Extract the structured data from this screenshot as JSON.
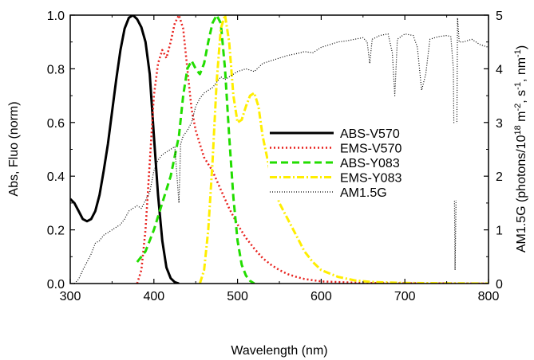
{
  "chart_data": {
    "type": "line",
    "title": "",
    "xlabel": "Wavelength (nm)",
    "ylabel": "Abs, Fluo (norm)",
    "y2label": "AM1.5G (photons/10^18 m^-2, s^-1, nm^-1)",
    "xlim": [
      300,
      800
    ],
    "ylim": [
      0,
      1.0
    ],
    "y2lim": [
      0,
      5
    ],
    "x_ticks": [
      "300",
      "400",
      "500",
      "600",
      "700",
      "800"
    ],
    "y_ticks": [
      "0.0",
      "0.2",
      "0.4",
      "0.6",
      "0.8",
      "1.0"
    ],
    "y2_ticks": [
      "0",
      "1",
      "2",
      "3",
      "4",
      "5"
    ],
    "grid": false,
    "legend_position": "center-right",
    "series": [
      {
        "name": "ABS-V570",
        "color": "#000000",
        "style": "solid",
        "axis": "left",
        "points": [
          [
            300,
            0.315
          ],
          [
            305,
            0.3
          ],
          [
            310,
            0.27
          ],
          [
            315,
            0.24
          ],
          [
            320,
            0.232
          ],
          [
            325,
            0.24
          ],
          [
            330,
            0.27
          ],
          [
            335,
            0.33
          ],
          [
            340,
            0.42
          ],
          [
            345,
            0.52
          ],
          [
            350,
            0.64
          ],
          [
            355,
            0.76
          ],
          [
            360,
            0.87
          ],
          [
            365,
            0.95
          ],
          [
            370,
            0.99
          ],
          [
            375,
            1.0
          ],
          [
            380,
            0.985
          ],
          [
            385,
            0.955
          ],
          [
            390,
            0.9
          ],
          [
            395,
            0.78
          ],
          [
            400,
            0.55
          ],
          [
            405,
            0.33
          ],
          [
            410,
            0.16
          ],
          [
            415,
            0.06
          ],
          [
            420,
            0.02
          ],
          [
            425,
            0.005
          ],
          [
            430,
            0.0
          ]
        ]
      },
      {
        "name": "EMS-V570",
        "color": "#e8201c",
        "style": "dotted",
        "axis": "left",
        "points": [
          [
            380,
            0.0
          ],
          [
            385,
            0.05
          ],
          [
            390,
            0.2
          ],
          [
            395,
            0.45
          ],
          [
            400,
            0.7
          ],
          [
            405,
            0.82
          ],
          [
            410,
            0.87
          ],
          [
            415,
            0.84
          ],
          [
            420,
            0.9
          ],
          [
            425,
            0.97
          ],
          [
            430,
            1.0
          ],
          [
            435,
            0.95
          ],
          [
            440,
            0.8
          ],
          [
            445,
            0.65
          ],
          [
            450,
            0.57
          ],
          [
            455,
            0.52
          ],
          [
            460,
            0.47
          ],
          [
            470,
            0.42
          ],
          [
            480,
            0.35
          ],
          [
            490,
            0.28
          ],
          [
            500,
            0.22
          ],
          [
            510,
            0.17
          ],
          [
            520,
            0.13
          ],
          [
            530,
            0.095
          ],
          [
            540,
            0.07
          ],
          [
            550,
            0.05
          ],
          [
            560,
            0.035
          ],
          [
            570,
            0.025
          ],
          [
            580,
            0.017
          ],
          [
            600,
            0.008
          ],
          [
            650,
            0.002
          ],
          [
            800,
            0.0
          ]
        ]
      },
      {
        "name": "ABS-Y083",
        "color": "#22dd00",
        "style": "dashed",
        "axis": "left",
        "points": [
          [
            380,
            0.08
          ],
          [
            390,
            0.12
          ],
          [
            400,
            0.2
          ],
          [
            410,
            0.3
          ],
          [
            420,
            0.4
          ],
          [
            430,
            0.55
          ],
          [
            435,
            0.7
          ],
          [
            440,
            0.8
          ],
          [
            445,
            0.83
          ],
          [
            450,
            0.8
          ],
          [
            455,
            0.78
          ],
          [
            460,
            0.82
          ],
          [
            465,
            0.9
          ],
          [
            470,
            0.97
          ],
          [
            475,
            1.0
          ],
          [
            480,
            0.97
          ],
          [
            485,
            0.8
          ],
          [
            490,
            0.55
          ],
          [
            495,
            0.32
          ],
          [
            500,
            0.16
          ],
          [
            505,
            0.07
          ],
          [
            510,
            0.03
          ],
          [
            515,
            0.01
          ],
          [
            520,
            0.0
          ]
        ]
      },
      {
        "name": "EMS-Y083",
        "color": "#ffee00",
        "style": "dashdot",
        "axis": "left",
        "points": [
          [
            455,
            0.0
          ],
          [
            460,
            0.05
          ],
          [
            465,
            0.2
          ],
          [
            470,
            0.45
          ],
          [
            475,
            0.75
          ],
          [
            480,
            0.95
          ],
          [
            485,
            1.0
          ],
          [
            490,
            0.9
          ],
          [
            495,
            0.7
          ],
          [
            500,
            0.6
          ],
          [
            505,
            0.61
          ],
          [
            510,
            0.66
          ],
          [
            515,
            0.7
          ],
          [
            520,
            0.71
          ],
          [
            525,
            0.66
          ],
          [
            530,
            0.55
          ],
          [
            540,
            0.4
          ],
          [
            550,
            0.3
          ],
          [
            560,
            0.24
          ],
          [
            570,
            0.18
          ],
          [
            580,
            0.12
          ],
          [
            590,
            0.08
          ],
          [
            600,
            0.05
          ],
          [
            620,
            0.025
          ],
          [
            640,
            0.012
          ],
          [
            660,
            0.006
          ],
          [
            700,
            0.002
          ],
          [
            800,
            0.0
          ]
        ]
      },
      {
        "name": "AM1.5G",
        "color": "#000000",
        "style": "fine-dotted",
        "axis": "right",
        "points": [
          [
            305,
            0.0
          ],
          [
            310,
            0.08
          ],
          [
            315,
            0.25
          ],
          [
            320,
            0.4
          ],
          [
            325,
            0.55
          ],
          [
            330,
            0.75
          ],
          [
            335,
            0.8
          ],
          [
            340,
            0.9
          ],
          [
            345,
            0.95
          ],
          [
            350,
            1.0
          ],
          [
            355,
            1.05
          ],
          [
            360,
            1.1
          ],
          [
            365,
            1.2
          ],
          [
            370,
            1.35
          ],
          [
            375,
            1.4
          ],
          [
            380,
            1.45
          ],
          [
            385,
            1.4
          ],
          [
            390,
            1.55
          ],
          [
            395,
            1.7
          ],
          [
            400,
            2.1
          ],
          [
            405,
            2.3
          ],
          [
            410,
            2.4
          ],
          [
            415,
            2.45
          ],
          [
            420,
            2.5
          ],
          [
            425,
            2.55
          ],
          [
            430,
            1.5
          ],
          [
            432,
            2.6
          ],
          [
            435,
            2.75
          ],
          [
            440,
            2.85
          ],
          [
            445,
            3.0
          ],
          [
            450,
            3.3
          ],
          [
            455,
            3.45
          ],
          [
            460,
            3.55
          ],
          [
            465,
            3.6
          ],
          [
            470,
            3.65
          ],
          [
            475,
            3.75
          ],
          [
            480,
            3.85
          ],
          [
            485,
            3.8
          ],
          [
            490,
            3.85
          ],
          [
            495,
            3.9
          ],
          [
            500,
            3.95
          ],
          [
            510,
            4.0
          ],
          [
            520,
            3.95
          ],
          [
            530,
            4.1
          ],
          [
            540,
            4.15
          ],
          [
            550,
            4.2
          ],
          [
            560,
            4.25
          ],
          [
            570,
            4.28
          ],
          [
            580,
            4.32
          ],
          [
            590,
            4.3
          ],
          [
            600,
            4.4
          ],
          [
            610,
            4.45
          ],
          [
            620,
            4.5
          ],
          [
            630,
            4.52
          ],
          [
            640,
            4.55
          ],
          [
            650,
            4.58
          ],
          [
            655,
            4.5
          ],
          [
            658,
            4.1
          ],
          [
            661,
            4.55
          ],
          [
            670,
            4.62
          ],
          [
            680,
            4.65
          ],
          [
            685,
            4.3
          ],
          [
            688,
            3.5
          ],
          [
            691,
            4.55
          ],
          [
            700,
            4.65
          ],
          [
            710,
            4.62
          ],
          [
            715,
            4.4
          ],
          [
            720,
            3.6
          ],
          [
            725,
            3.9
          ],
          [
            730,
            4.55
          ],
          [
            740,
            4.6
          ],
          [
            750,
            4.62
          ],
          [
            755,
            4.6
          ],
          [
            758,
            4.0
          ],
          [
            760,
            0.25
          ],
          [
            762,
            2.5
          ],
          [
            763,
            4.95
          ],
          [
            765,
            4.5
          ],
          [
            770,
            4.5
          ],
          [
            780,
            4.55
          ],
          [
            790,
            4.45
          ],
          [
            800,
            4.4
          ]
        ]
      }
    ]
  }
}
